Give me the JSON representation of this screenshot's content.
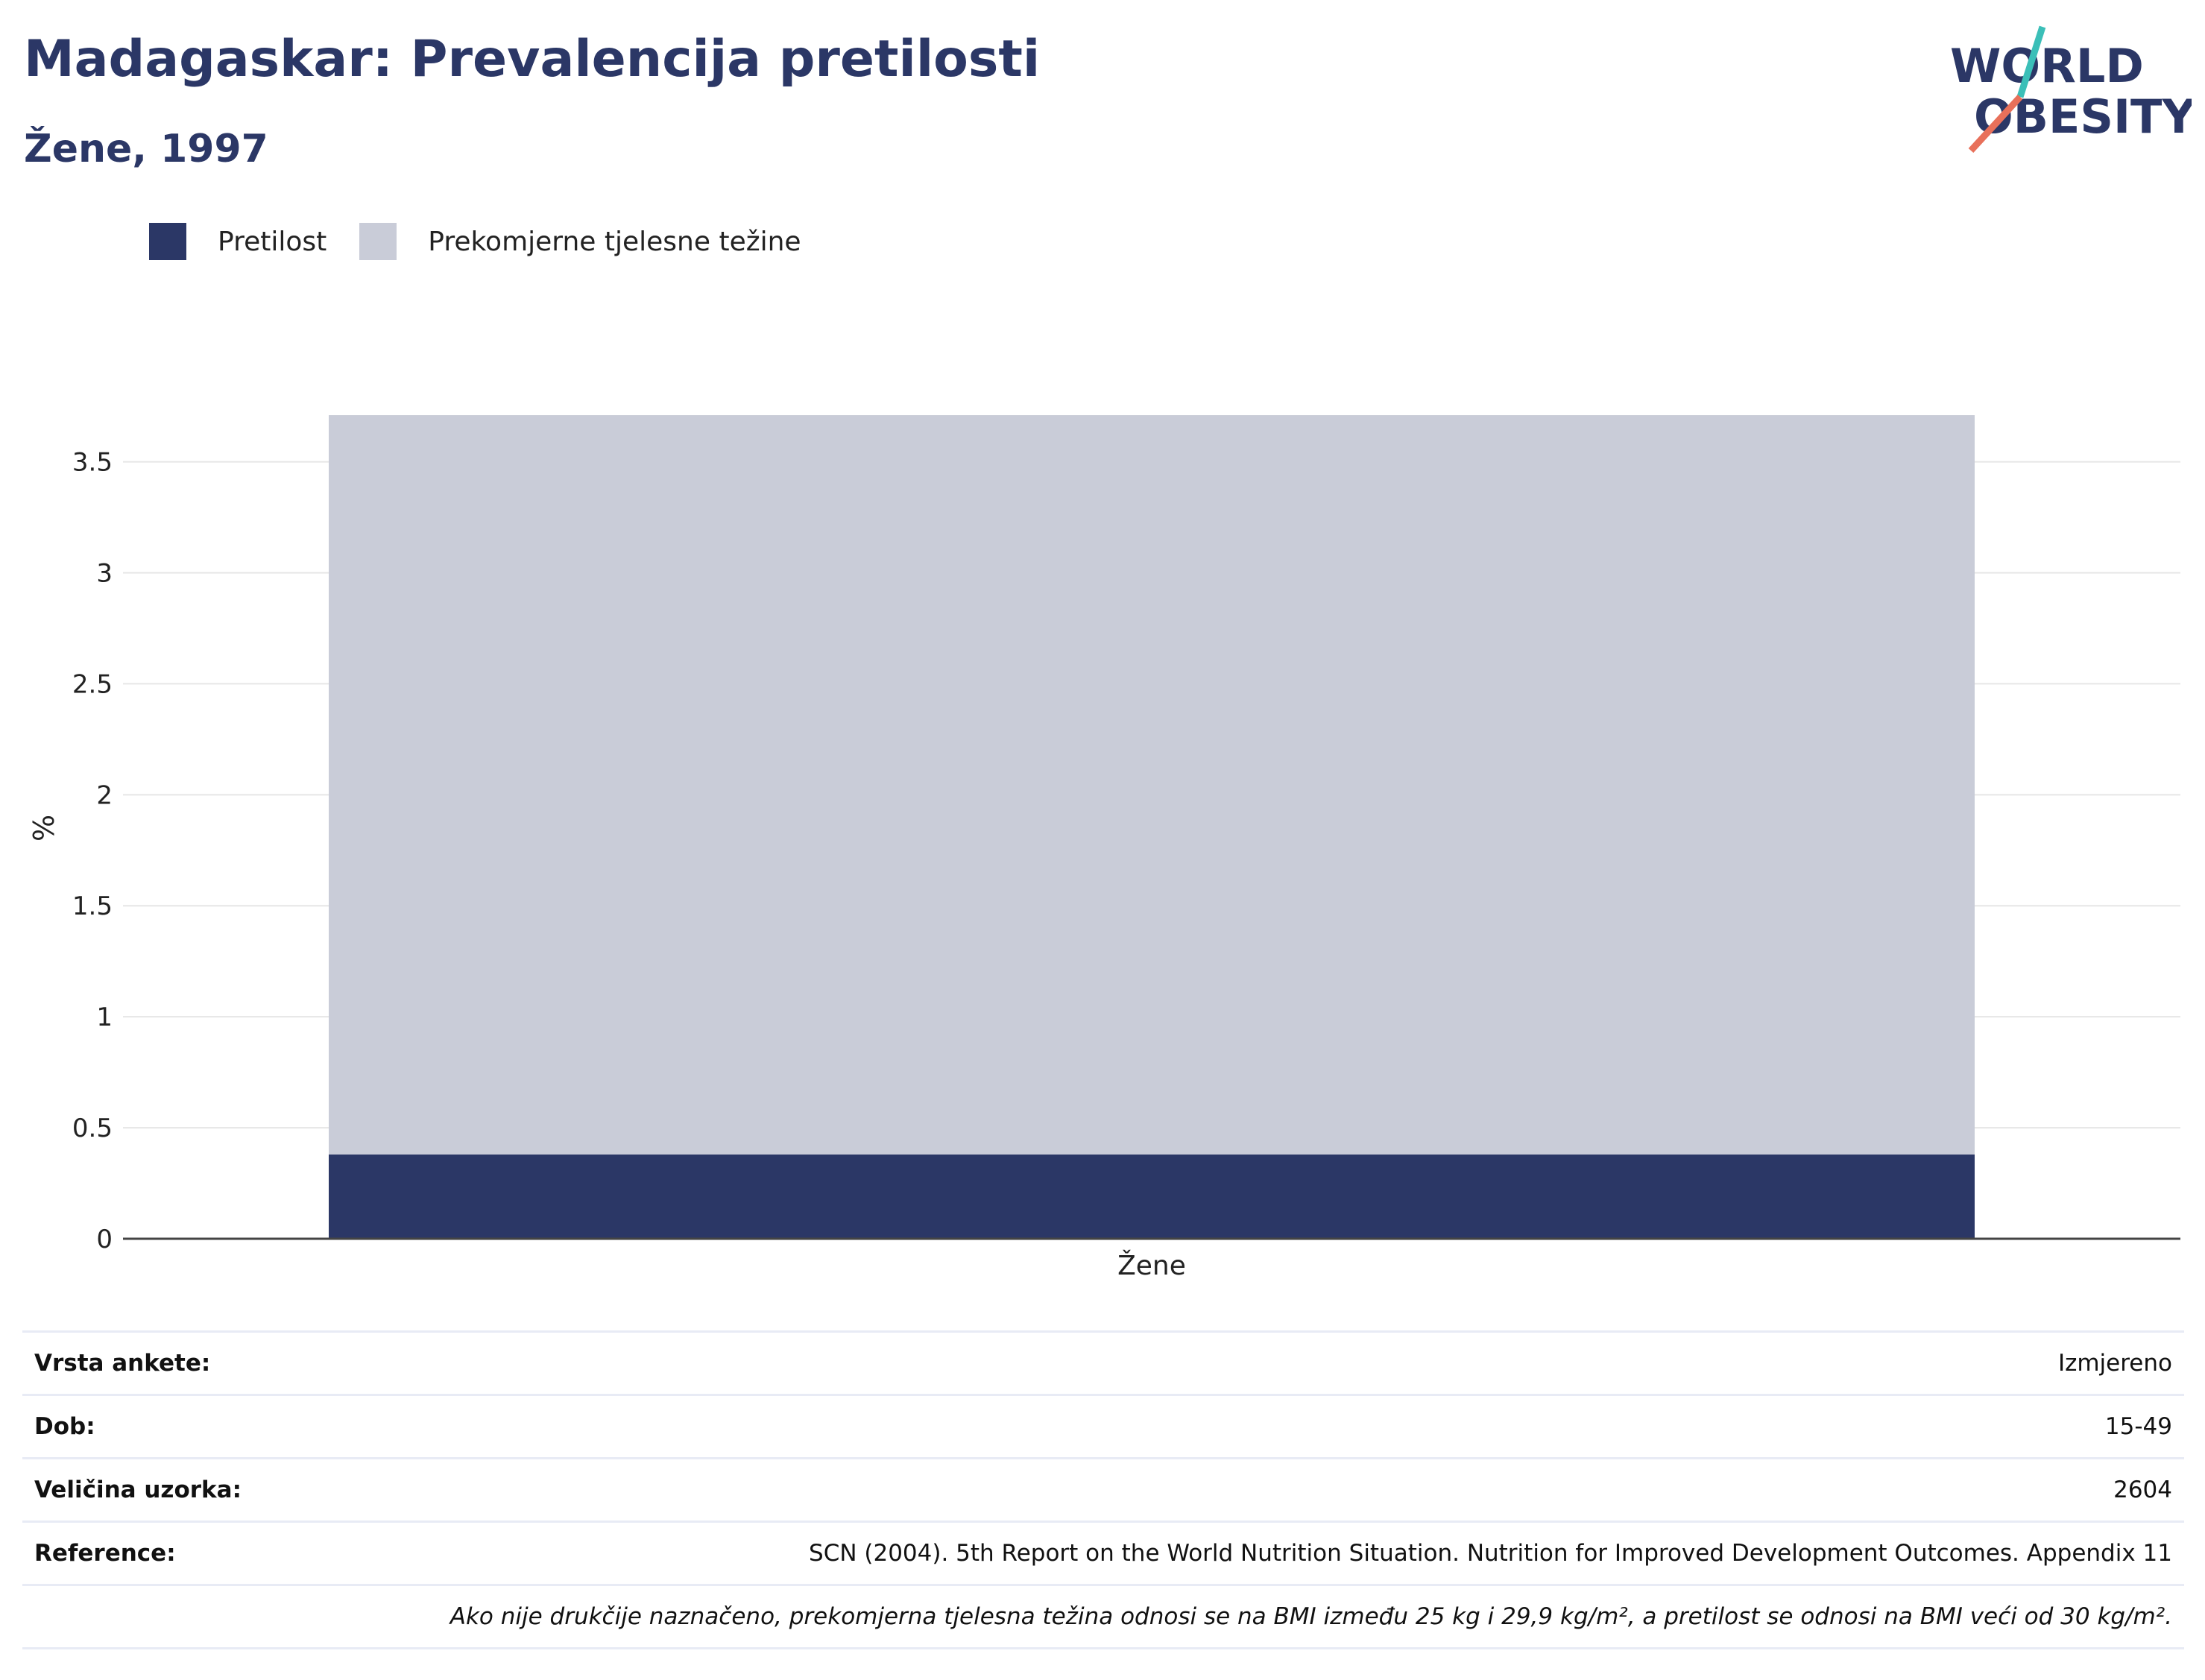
{
  "title": "Madagaskar: Prevalencija pretilosti",
  "subtitle": "Žene, 1997",
  "logo": {
    "line1": "WORLD",
    "line2": "OBESITY",
    "colors": {
      "text": "#2b3766",
      "slash_top": "#3bbfb8",
      "slash_bottom": "#e8705a"
    }
  },
  "legend": [
    {
      "label": "Pretilost",
      "color": "#2b3766"
    },
    {
      "label": "Prekomjerne tjelesne težine",
      "color": "#c9ccd8"
    }
  ],
  "chart_data": {
    "type": "bar",
    "stacked": true,
    "categories": [
      "Žene"
    ],
    "series": [
      {
        "name": "Pretilost",
        "values": [
          0.38
        ],
        "color": "#2b3766"
      },
      {
        "name": "Prekomjerne tjelesne težine",
        "values": [
          3.33
        ],
        "color": "#c9ccd8"
      }
    ],
    "ylabel": "%",
    "xlabel": "",
    "ylim": [
      0,
      3.7
    ],
    "yticks": [
      0,
      0.5,
      1,
      1.5,
      2,
      2.5,
      3,
      3.5
    ],
    "ytick_labels": [
      "0",
      "0.5",
      "1",
      "1.5",
      "2",
      "2.5",
      "3",
      "3.5"
    ],
    "grid": true,
    "legend_position": "top-left"
  },
  "info": [
    {
      "label": "Vrsta ankete:",
      "value": "Izmjereno"
    },
    {
      "label": "Dob:",
      "value": "15-49"
    },
    {
      "label": "Veličina uzorka:",
      "value": "2604"
    },
    {
      "label": "Reference:",
      "value": "SCN (2004). 5th Report on the World Nutrition Situation. Nutrition for Improved Development Outcomes. Appendix 11"
    }
  ],
  "footnote": "Ako nije drukčije naznačeno, prekomjerna tjelesna težina odnosi se na BMI između 25 kg i 29,9 kg/m², a pretilost se odnosi na BMI veći od 30 kg/m²."
}
